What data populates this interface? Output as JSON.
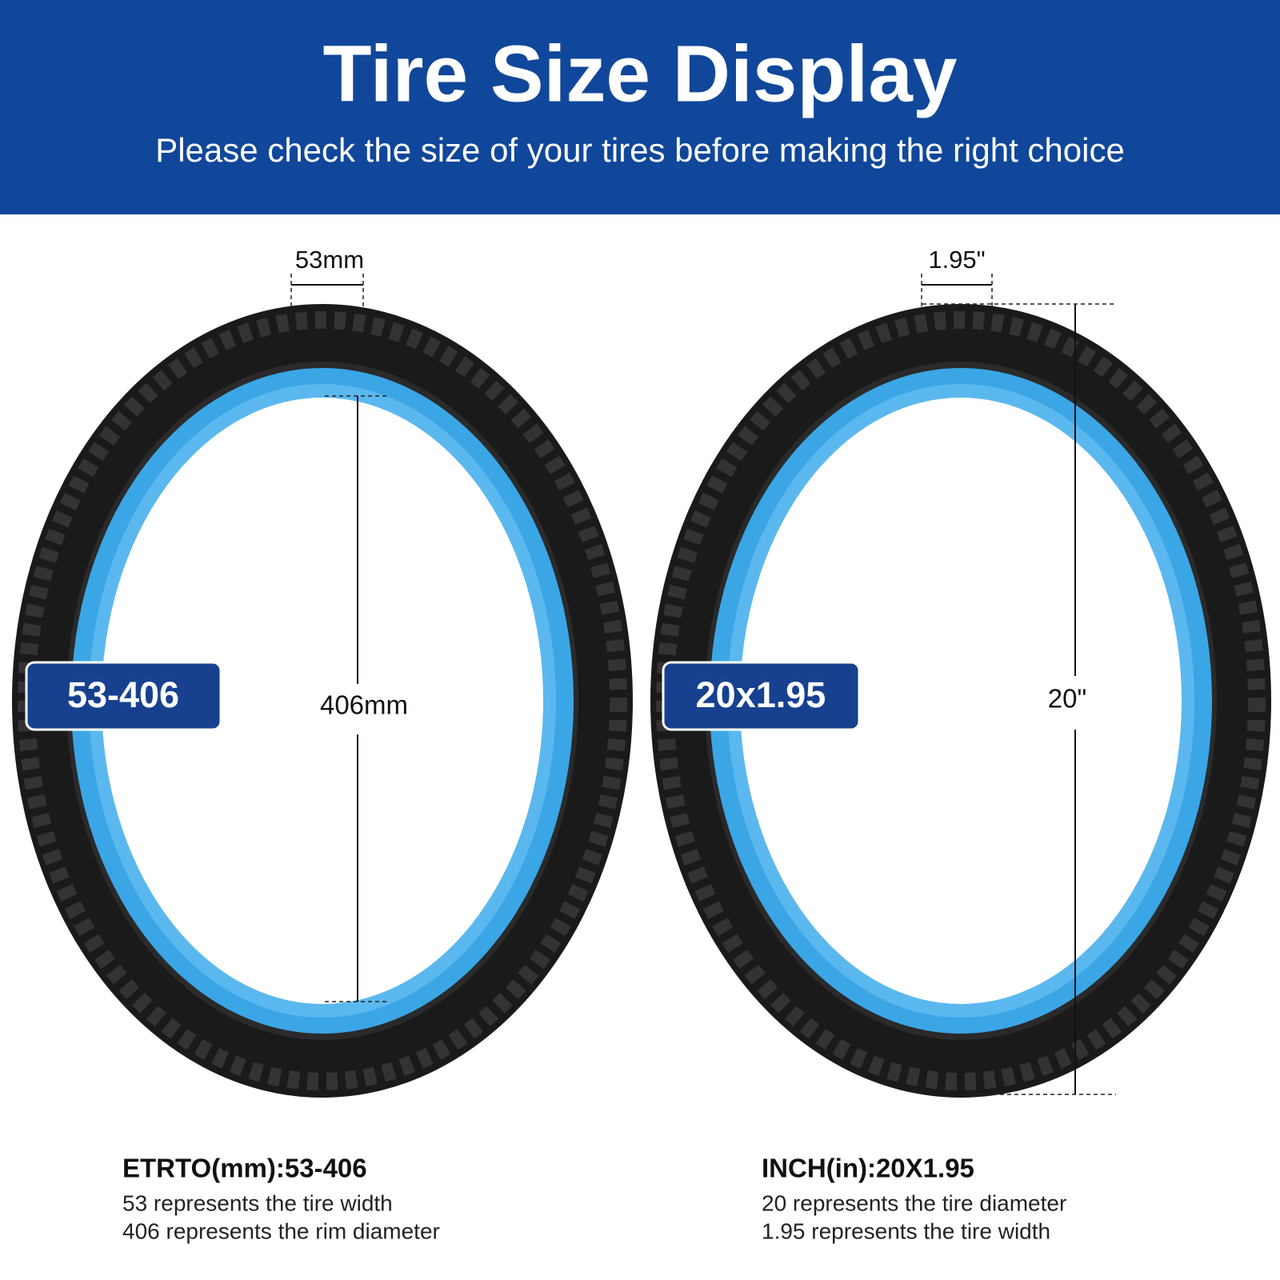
{
  "header": {
    "title": "Tire Size Display",
    "subtitle": "Please check the size of your tires before making the right choice"
  },
  "tires": [
    {
      "width_label": "53mm",
      "diameter_label": "406mm",
      "badge": "53-406",
      "spec_title": "ETRTO(mm):53-406",
      "lines": [
        "53 represents the tire width",
        "406 represents the rim diameter"
      ]
    },
    {
      "width_label": "1.95\"",
      "diameter_label": "20\"",
      "badge": "20x1.95",
      "spec_title": "INCH(in):20X1.95",
      "lines": [
        "20 represents the tire diameter",
        "1.95 represents the tire width"
      ]
    }
  ]
}
